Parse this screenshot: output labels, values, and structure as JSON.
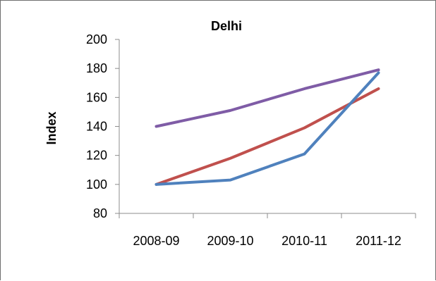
{
  "chart_data": {
    "type": "line",
    "title": "Delhi",
    "xlabel": "",
    "ylabel": "Index",
    "categories": [
      "2008-09",
      "2009-10",
      "2010-11",
      "2011-12"
    ],
    "ylim": [
      80,
      200
    ],
    "yticks": [
      80,
      100,
      120,
      140,
      160,
      180,
      200
    ],
    "grid": false,
    "legend": "none",
    "series": [
      {
        "values": [
          140,
          151,
          166,
          179
        ],
        "color": "#7f5ca6"
      },
      {
        "values": [
          100,
          118,
          139,
          166
        ],
        "color": "#c0504d"
      },
      {
        "values": [
          100,
          103,
          121,
          177
        ],
        "color": "#4f81bd"
      }
    ]
  }
}
